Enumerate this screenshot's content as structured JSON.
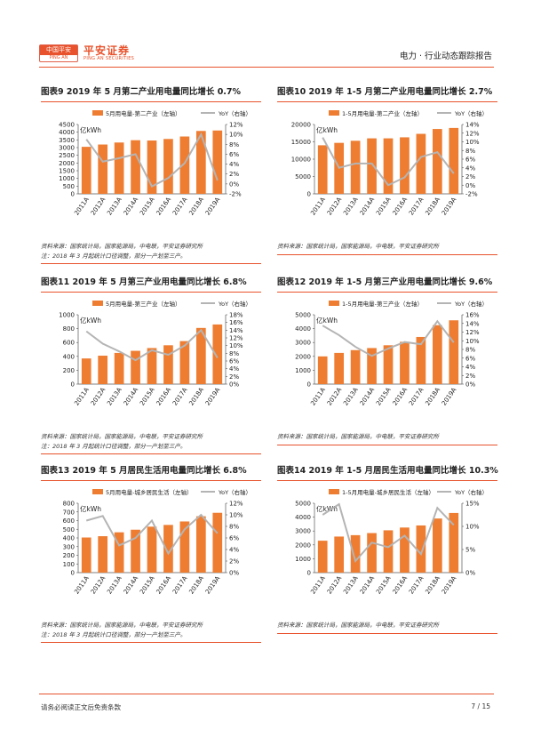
{
  "header": {
    "logo_box_top": "中国平安",
    "logo_box_bottom": "PING AN",
    "logo_cn": "平安证券",
    "logo_en": "PING AN SECURITIES",
    "report_title": "电力 · 行业动态跟踪报告"
  },
  "footer": {
    "disclaimer": "请务必阅读正文后免责条款",
    "page": "7 / 15"
  },
  "colors": {
    "bar": "#ee7d31",
    "line": "#b4b4b4",
    "accent": "#e8522c"
  },
  "charts": [
    {
      "title": "图表9    2019 年 5 月第二产业用电量同比增长 0.7%",
      "legend_bar": "5月用电量-第二产业（左轴）",
      "legend_line": "YoY（右轴）",
      "unit": "亿kWh",
      "source_lines": [
        "资料来源：国家统计局，国家能源局，中电联，平安证券研究所",
        "注：2018 年 3 月起统计口径调整，部分一产划至三产。"
      ]
    },
    {
      "title": "图表10    2019 年 1-5 月第二产业用电量同比增长 2.7%",
      "legend_bar": "1-5月用电量-第二产业（左轴）",
      "legend_line": "YoY（右轴）",
      "unit": "亿kWh",
      "source_lines": [
        "资料来源：国家统计局，国家能源局，中电联，平安证券研究所"
      ]
    },
    {
      "title": "图表11    2019 年 5 月第三产业用电量同比增长 6.8%",
      "legend_bar": "5月用电量-第三产业（左轴）",
      "legend_line": "YoY（右轴）",
      "unit": "亿kWh",
      "source_lines": [
        "资料来源：国家统计局，国家能源局，中电联，平安证券研究所",
        "注：2018 年 3 月起统计口径调整，部分一产划至三产。"
      ]
    },
    {
      "title": "图表12    2019 年 1-5 月第三产业用电量同比增长 9.6%",
      "legend_bar": "1-5月用电量-第三产业（左轴）",
      "legend_line": "YoY（右轴）",
      "unit": "亿kWh",
      "source_lines": [
        "资料来源：国家统计局，国家能源局，中电联，平安证券研究所"
      ]
    },
    {
      "title": "图表13    2019 年 5 月居民生活用电量同比增长 6.8%",
      "legend_bar": "5月用电量-城乡居民生活（左轴）",
      "legend_line": "YoY（右轴）",
      "unit": "亿kWh",
      "source_lines": [
        "资料来源：国家统计局，国家能源局，中电联，平安证券研究所",
        "注：2018 年 3 月起统计口径调整，部分一产划至三产。"
      ]
    },
    {
      "title": "图表14    2019 年 1-5 月居民生活用电量同比增长 10.3%",
      "legend_bar": "1-5月用电量-城乡居民生活（左轴）",
      "legend_line": "YoY（右轴）",
      "unit": "亿kWh",
      "source_lines": [
        "资料来源：国家统计局，国家能源局，中电联，平安证券研究所"
      ]
    }
  ],
  "chart_data": [
    {
      "type": "bar",
      "categories": [
        "2011A",
        "2012A",
        "2013A",
        "2014A",
        "2015A",
        "2016A",
        "2017A",
        "2018A",
        "2019A"
      ],
      "series": [
        {
          "name": "5月用电量-第二产业（左轴）",
          "axis": "left",
          "values": [
            3050,
            3200,
            3330,
            3480,
            3460,
            3560,
            3720,
            4080,
            4110
          ]
        },
        {
          "name": "YoY（右轴）",
          "axis": "right",
          "type": "line",
          "values": [
            9.0,
            4.5,
            5.2,
            6.0,
            -0.5,
            1.2,
            4.2,
            10.0,
            0.7
          ]
        }
      ],
      "yleft": {
        "min": 0,
        "max": 4500,
        "ticks": [
          0,
          500,
          1000,
          1500,
          2000,
          2500,
          3000,
          3500,
          4000,
          4500
        ]
      },
      "yright": {
        "min": -2,
        "max": 12,
        "ticks": [
          "-2%",
          "0%",
          "2%",
          "4%",
          "6%",
          "8%",
          "10%",
          "12%"
        ],
        "tick_values": [
          -2,
          0,
          2,
          4,
          6,
          8,
          10,
          12
        ]
      }
    },
    {
      "type": "bar",
      "categories": [
        "2011A",
        "2012A",
        "2013A",
        "2014A",
        "2015A",
        "2016A",
        "2017A",
        "2018A",
        "2019A"
      ],
      "series": [
        {
          "name": "1-5月用电量-第二产业（左轴）",
          "axis": "left",
          "values": [
            14000,
            14700,
            15300,
            16000,
            16000,
            16300,
            17300,
            18700,
            19000
          ]
        },
        {
          "name": "YoY（右轴）",
          "axis": "right",
          "type": "line",
          "values": [
            11.0,
            4.0,
            5.0,
            5.0,
            0.0,
            1.8,
            6.5,
            7.6,
            2.7
          ]
        }
      ],
      "yleft": {
        "min": 0,
        "max": 20000,
        "ticks": [
          0,
          5000,
          10000,
          15000,
          20000
        ]
      },
      "yright": {
        "min": -2,
        "max": 14,
        "ticks": [
          "-2%",
          "0%",
          "2%",
          "4%",
          "6%",
          "8%",
          "10%",
          "12%",
          "14%"
        ],
        "tick_values": [
          -2,
          0,
          2,
          4,
          6,
          8,
          10,
          12,
          14
        ]
      }
    },
    {
      "type": "bar",
      "categories": [
        "2011A",
        "2012A",
        "2013A",
        "2014A",
        "2015A",
        "2016A",
        "2017A",
        "2018A",
        "2019A"
      ],
      "series": [
        {
          "name": "5月用电量-第三产业（左轴）",
          "axis": "left",
          "values": [
            370,
            410,
            450,
            480,
            520,
            560,
            620,
            810,
            860
          ]
        },
        {
          "name": "YoY（右轴）",
          "axis": "right",
          "type": "line",
          "values": [
            13.7,
            10.5,
            8.5,
            6.2,
            8.8,
            7.6,
            10.0,
            14.0,
            6.8
          ]
        }
      ],
      "yleft": {
        "min": 0,
        "max": 1000,
        "ticks": [
          0,
          200,
          400,
          600,
          800,
          1000
        ]
      },
      "yright": {
        "min": 0,
        "max": 18,
        "ticks": [
          "0%",
          "2%",
          "4%",
          "6%",
          "8%",
          "10%",
          "12%",
          "14%",
          "16%",
          "18%"
        ],
        "tick_values": [
          0,
          2,
          4,
          6,
          8,
          10,
          12,
          14,
          16,
          18
        ]
      }
    },
    {
      "type": "bar",
      "categories": [
        "2011A",
        "2012A",
        "2013A",
        "2014A",
        "2015A",
        "2016A",
        "2017A",
        "2018A",
        "2019A"
      ],
      "series": [
        {
          "name": "1-5月用电量-第三产业（左轴）",
          "axis": "left",
          "values": [
            2000,
            2250,
            2450,
            2600,
            2800,
            3050,
            3400,
            4250,
            4600
          ]
        },
        {
          "name": "YoY（右轴）",
          "axis": "right",
          "type": "line",
          "values": [
            13.5,
            11.3,
            8.6,
            6.5,
            8.2,
            9.7,
            9.2,
            14.5,
            9.6
          ]
        }
      ],
      "yleft": {
        "min": 0,
        "max": 5000,
        "ticks": [
          0,
          1000,
          2000,
          3000,
          4000,
          5000
        ]
      },
      "yright": {
        "min": 0,
        "max": 16,
        "ticks": [
          "0%",
          "2%",
          "4%",
          "6%",
          "8%",
          "10%",
          "12%",
          "14%",
          "16%"
        ],
        "tick_values": [
          0,
          2,
          4,
          6,
          8,
          10,
          12,
          14,
          16
        ]
      }
    },
    {
      "type": "bar",
      "categories": [
        "2011A",
        "2012A",
        "2013A",
        "2014A",
        "2015A",
        "2016A",
        "2017A",
        "2018A",
        "2019A"
      ],
      "series": [
        {
          "name": "5月用电量-城乡居民生活（左轴）",
          "axis": "left",
          "values": [
            405,
            420,
            465,
            495,
            530,
            550,
            590,
            650,
            690
          ]
        },
        {
          "name": "YoY（右轴）",
          "axis": "right",
          "type": "line",
          "values": [
            9.0,
            9.8,
            4.7,
            6.0,
            9.0,
            3.3,
            7.5,
            10.0,
            6.8
          ]
        }
      ],
      "yleft": {
        "min": 0,
        "max": 800,
        "ticks": [
          0,
          100,
          200,
          300,
          400,
          500,
          600,
          700,
          800
        ]
      },
      "yright": {
        "min": 0,
        "max": 12,
        "ticks": [
          "0%",
          "2%",
          "4%",
          "6%",
          "8%",
          "10%",
          "12%"
        ],
        "tick_values": [
          0,
          2,
          4,
          6,
          8,
          10,
          12
        ]
      }
    },
    {
      "type": "bar",
      "categories": [
        "2011A",
        "2012A",
        "2013A",
        "2014A",
        "2015A",
        "2016A",
        "2017A",
        "2018A",
        "2019A"
      ],
      "series": [
        {
          "name": "1-5月用电量-城乡居民生活（左轴）",
          "axis": "left",
          "values": [
            2300,
            2600,
            2700,
            2850,
            3050,
            3250,
            3400,
            3900,
            4300
          ]
        },
        {
          "name": "YoY（右轴）",
          "axis": "right",
          "type": "line",
          "values": [
            12.5,
            14.8,
            2.5,
            6.5,
            5.5,
            8.0,
            4.0,
            14.0,
            10.3
          ]
        }
      ],
      "yleft": {
        "min": 0,
        "max": 5000,
        "ticks": [
          0,
          1000,
          2000,
          3000,
          4000,
          5000
        ]
      },
      "yright": {
        "min": 0,
        "max": 15,
        "ticks": [
          "0%",
          "5%",
          "10%",
          "15%"
        ],
        "tick_values": [
          0,
          5,
          10,
          15
        ]
      }
    }
  ]
}
